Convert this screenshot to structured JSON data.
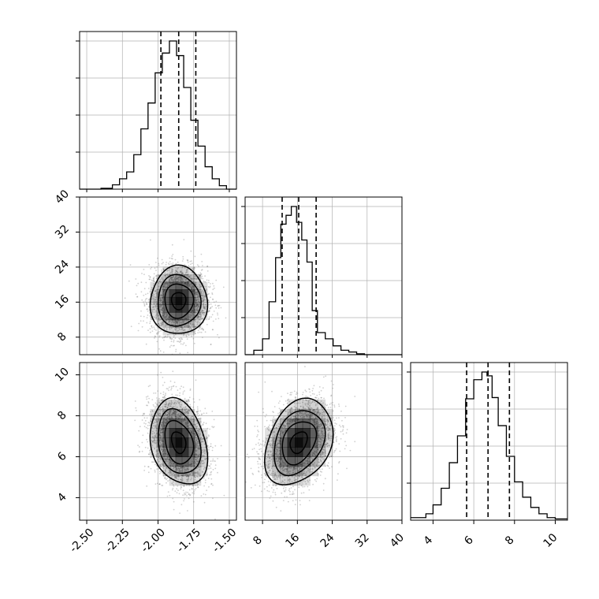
{
  "chart_data": {
    "type": "corner",
    "title": "",
    "grid": true,
    "colors": {
      "line": "#000000",
      "grid": "#b0b0b0",
      "points": "#777777",
      "density": "#000000"
    },
    "parameters": [
      {
        "index": 0,
        "xlim": [
          -2.55,
          -1.45
        ],
        "ticks": [
          "-2.50",
          "-2.25",
          "-2.00",
          "-1.75",
          "-1.50"
        ],
        "tick_values": [
          -2.5,
          -2.25,
          -2.0,
          -1.75,
          -1.5
        ],
        "quantiles": [
          -1.98,
          -1.855,
          -1.735
        ],
        "mean": -1.855,
        "sd": 0.1
      },
      {
        "index": 1,
        "xlim": [
          4,
          40
        ],
        "ticks": [
          "8",
          "16",
          "24",
          "32",
          "40"
        ],
        "tick_values": [
          8,
          16,
          24,
          32,
          40
        ],
        "quantiles": [
          12.5,
          16.3,
          20.3
        ],
        "mean": 16.3,
        "sd": 3.9
      },
      {
        "index": 2,
        "xlim": [
          2.9,
          10.6
        ],
        "ticks": [
          "4",
          "6",
          "8",
          "10"
        ],
        "tick_values": [
          4,
          6,
          8,
          10
        ],
        "quantiles": [
          5.65,
          6.7,
          7.75
        ],
        "mean": 6.7,
        "sd": 1.05
      }
    ],
    "histograms": [
      {
        "param": 0,
        "bin_edges": [
          -2.55,
          -2.4,
          -2.32,
          -2.27,
          -2.22,
          -2.17,
          -2.12,
          -2.07,
          -2.02,
          -1.97,
          -1.92,
          -1.87,
          -1.82,
          -1.77,
          -1.72,
          -1.67,
          -1.62,
          -1.57,
          -1.52,
          -1.45
        ],
        "counts": [
          0,
          1,
          5,
          12,
          20,
          40,
          70,
          100,
          135,
          158,
          172,
          155,
          118,
          80,
          50,
          26,
          12,
          4,
          0
        ]
      },
      {
        "param": 1,
        "bin_edges": [
          4,
          6,
          8,
          9.5,
          11,
          12.2,
          13.4,
          14.6,
          15.8,
          17,
          18.2,
          19.4,
          20.6,
          22.4,
          24.2,
          26,
          27.8,
          29.6,
          31.4,
          40
        ],
        "counts": [
          0,
          5,
          18,
          60,
          110,
          148,
          158,
          168,
          150,
          130,
          105,
          50,
          25,
          18,
          10,
          5,
          3,
          1,
          0
        ]
      },
      {
        "param": 2,
        "bin_edges": [
          2.9,
          3.65,
          4.0,
          4.4,
          4.8,
          5.2,
          5.6,
          6.0,
          6.4,
          6.65,
          6.9,
          7.2,
          7.6,
          8.0,
          8.4,
          8.8,
          9.2,
          9.6,
          10.0,
          10.6
        ],
        "counts": [
          2,
          5,
          12,
          25,
          45,
          66,
          95,
          110,
          116,
          113,
          96,
          74,
          50,
          30,
          18,
          10,
          5,
          2,
          1
        ]
      }
    ],
    "pairs": [
      {
        "x": 0,
        "y": 1,
        "correlation": 0.0
      },
      {
        "x": 0,
        "y": 2,
        "correlation": -0.25
      },
      {
        "x": 1,
        "y": 2,
        "correlation": 0.3
      }
    ],
    "contour_levels_sigma": [
      0.5,
      1.0,
      1.5,
      2.0
    ]
  }
}
